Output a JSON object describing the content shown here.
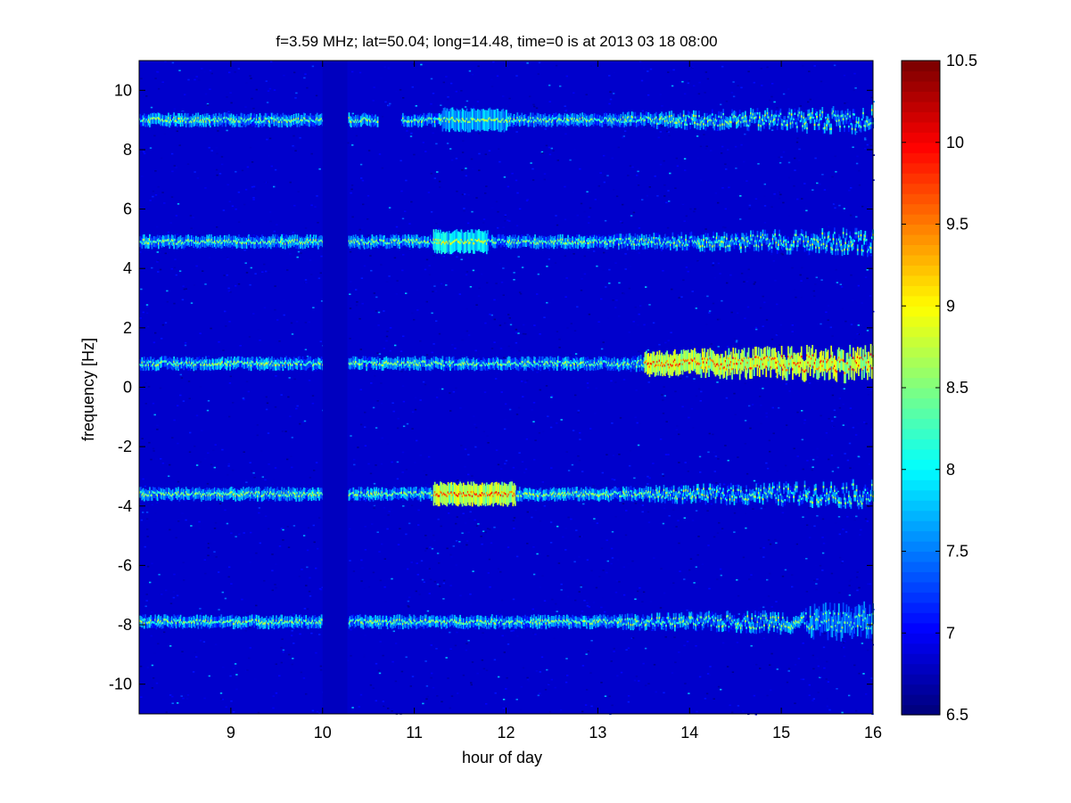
{
  "chart_data": {
    "type": "heatmap",
    "title": "f=3.59 MHz;  lat=50.04; long=14.48, time=0 is at 2013 03 18 08:00",
    "xlabel": "hour of day",
    "ylabel": "frequency [Hz]",
    "xlim": [
      8,
      16
    ],
    "ylim": [
      -11,
      11
    ],
    "x_ticks": [
      9,
      10,
      11,
      12,
      13,
      14,
      15,
      16
    ],
    "y_ticks": [
      -10,
      -8,
      -6,
      -4,
      -2,
      0,
      2,
      4,
      6,
      8,
      10
    ],
    "colorbar": {
      "range": [
        6.5,
        10.5
      ],
      "ticks": [
        6.5,
        7,
        7.5,
        8,
        8.5,
        9,
        9.5,
        10,
        10.5
      ],
      "colormap": "jet"
    },
    "background_level": 6.8,
    "data_gaps": [
      [
        10.0,
        10.27
      ]
    ],
    "traces": [
      {
        "freq": 9.0,
        "x_start": 8.0,
        "x_end": 16.0,
        "peak_level": 9.0,
        "peak_x": [
          11.3,
          12.0
        ],
        "breaks": [
          [
            10.6,
            10.85
          ]
        ]
      },
      {
        "freq": 4.9,
        "x_start": 8.0,
        "x_end": 16.0,
        "peak_level": 9.2,
        "peak_x": [
          11.2,
          11.8
        ],
        "breaks": []
      },
      {
        "freq": 0.8,
        "x_start": 8.0,
        "x_end": 16.0,
        "peak_level": 10.0,
        "peak_x": [
          13.5,
          16.0
        ],
        "breaks": []
      },
      {
        "freq": -3.6,
        "x_start": 8.0,
        "x_end": 16.0,
        "peak_level": 10.0,
        "peak_x": [
          11.2,
          12.1
        ],
        "breaks": []
      },
      {
        "freq": -7.9,
        "x_start": 8.0,
        "x_end": 16.0,
        "peak_level": 8.8,
        "peak_x": [
          15.3,
          16.0
        ],
        "breaks": []
      }
    ]
  }
}
